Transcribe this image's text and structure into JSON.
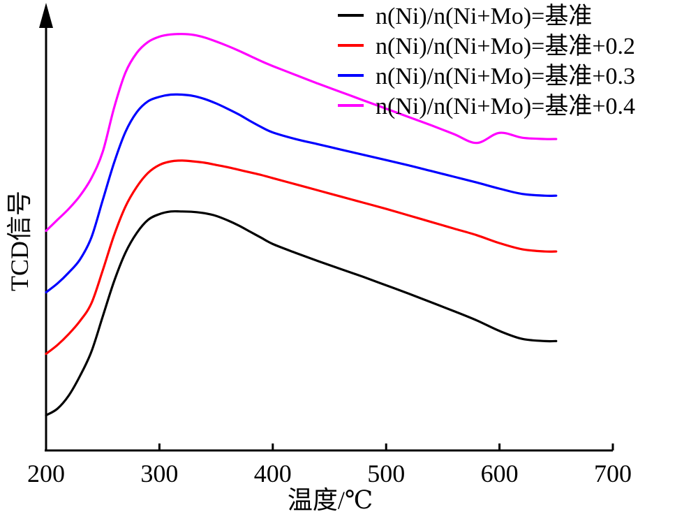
{
  "chart_data": {
    "type": "line",
    "xlabel": "温度/℃",
    "ylabel": "TCD信号",
    "xlim": [
      200,
      700
    ],
    "xticks": [
      "200",
      "300",
      "400",
      "500",
      "600",
      "700"
    ],
    "xtick_values": [
      200,
      300,
      400,
      500,
      600,
      700
    ],
    "ylim": [
      0,
      100
    ],
    "yticks_shown": false,
    "grid": false,
    "legend_position": "top-right",
    "x": [
      200,
      210,
      220,
      230,
      240,
      250,
      260,
      270,
      280,
      290,
      300,
      310,
      320,
      330,
      340,
      350,
      360,
      370,
      380,
      390,
      400,
      420,
      440,
      460,
      480,
      500,
      520,
      540,
      560,
      580,
      600,
      620,
      640,
      650
    ],
    "series": [
      {
        "name": "n(Ni)/n(Ni+Mo)=基准",
        "color": "#000000",
        "values": [
          8.0,
          9.5,
          12.5,
          17.0,
          22.5,
          30.5,
          38.5,
          45.0,
          49.5,
          52.5,
          53.8,
          54.4,
          54.4,
          54.3,
          54.0,
          53.4,
          52.4,
          51.2,
          49.8,
          48.4,
          47.0,
          45.0,
          43.1,
          41.3,
          39.5,
          37.6,
          35.7,
          33.7,
          31.7,
          29.6,
          27.2,
          25.4,
          24.9,
          24.9
        ]
      },
      {
        "name": "n(Ni)/n(Ni+Mo)=基准+0.2",
        "color": "#ff0000",
        "values": [
          22.0,
          24.0,
          26.5,
          29.5,
          33.5,
          41.0,
          49.0,
          55.5,
          60.0,
          63.2,
          65.0,
          65.8,
          66.0,
          65.8,
          65.5,
          65.0,
          64.5,
          63.9,
          63.3,
          62.7,
          62.0,
          60.6,
          59.2,
          57.8,
          56.4,
          55.0,
          53.5,
          52.0,
          50.5,
          49.0,
          47.2,
          45.8,
          45.3,
          45.3
        ]
      },
      {
        "name": "n(Ni)/n(Ni+Mo)=基准+0.3",
        "color": "#0000ff",
        "values": [
          36.0,
          38.0,
          40.5,
          43.5,
          48.5,
          57.0,
          65.5,
          72.5,
          77.0,
          79.5,
          80.5,
          81.0,
          81.0,
          80.7,
          80.0,
          79.0,
          77.8,
          76.5,
          75.0,
          73.6,
          72.4,
          70.9,
          69.7,
          68.5,
          67.3,
          66.1,
          64.9,
          63.6,
          62.3,
          61.0,
          59.6,
          58.4,
          58.0,
          58.0
        ]
      },
      {
        "name": "n(Ni)/n(Ni+Mo)=基准+0.4",
        "color": "#ff00ff",
        "values": [
          50.0,
          52.5,
          55.0,
          58.0,
          62.0,
          68.0,
          78.0,
          86.0,
          90.5,
          93.0,
          94.2,
          94.7,
          94.8,
          94.6,
          94.0,
          93.1,
          92.1,
          91.0,
          89.8,
          88.6,
          87.5,
          85.5,
          83.5,
          81.6,
          79.7,
          77.8,
          75.9,
          74.0,
          72.0,
          70.0,
          72.3,
          71.2,
          70.9,
          70.9
        ]
      }
    ]
  }
}
